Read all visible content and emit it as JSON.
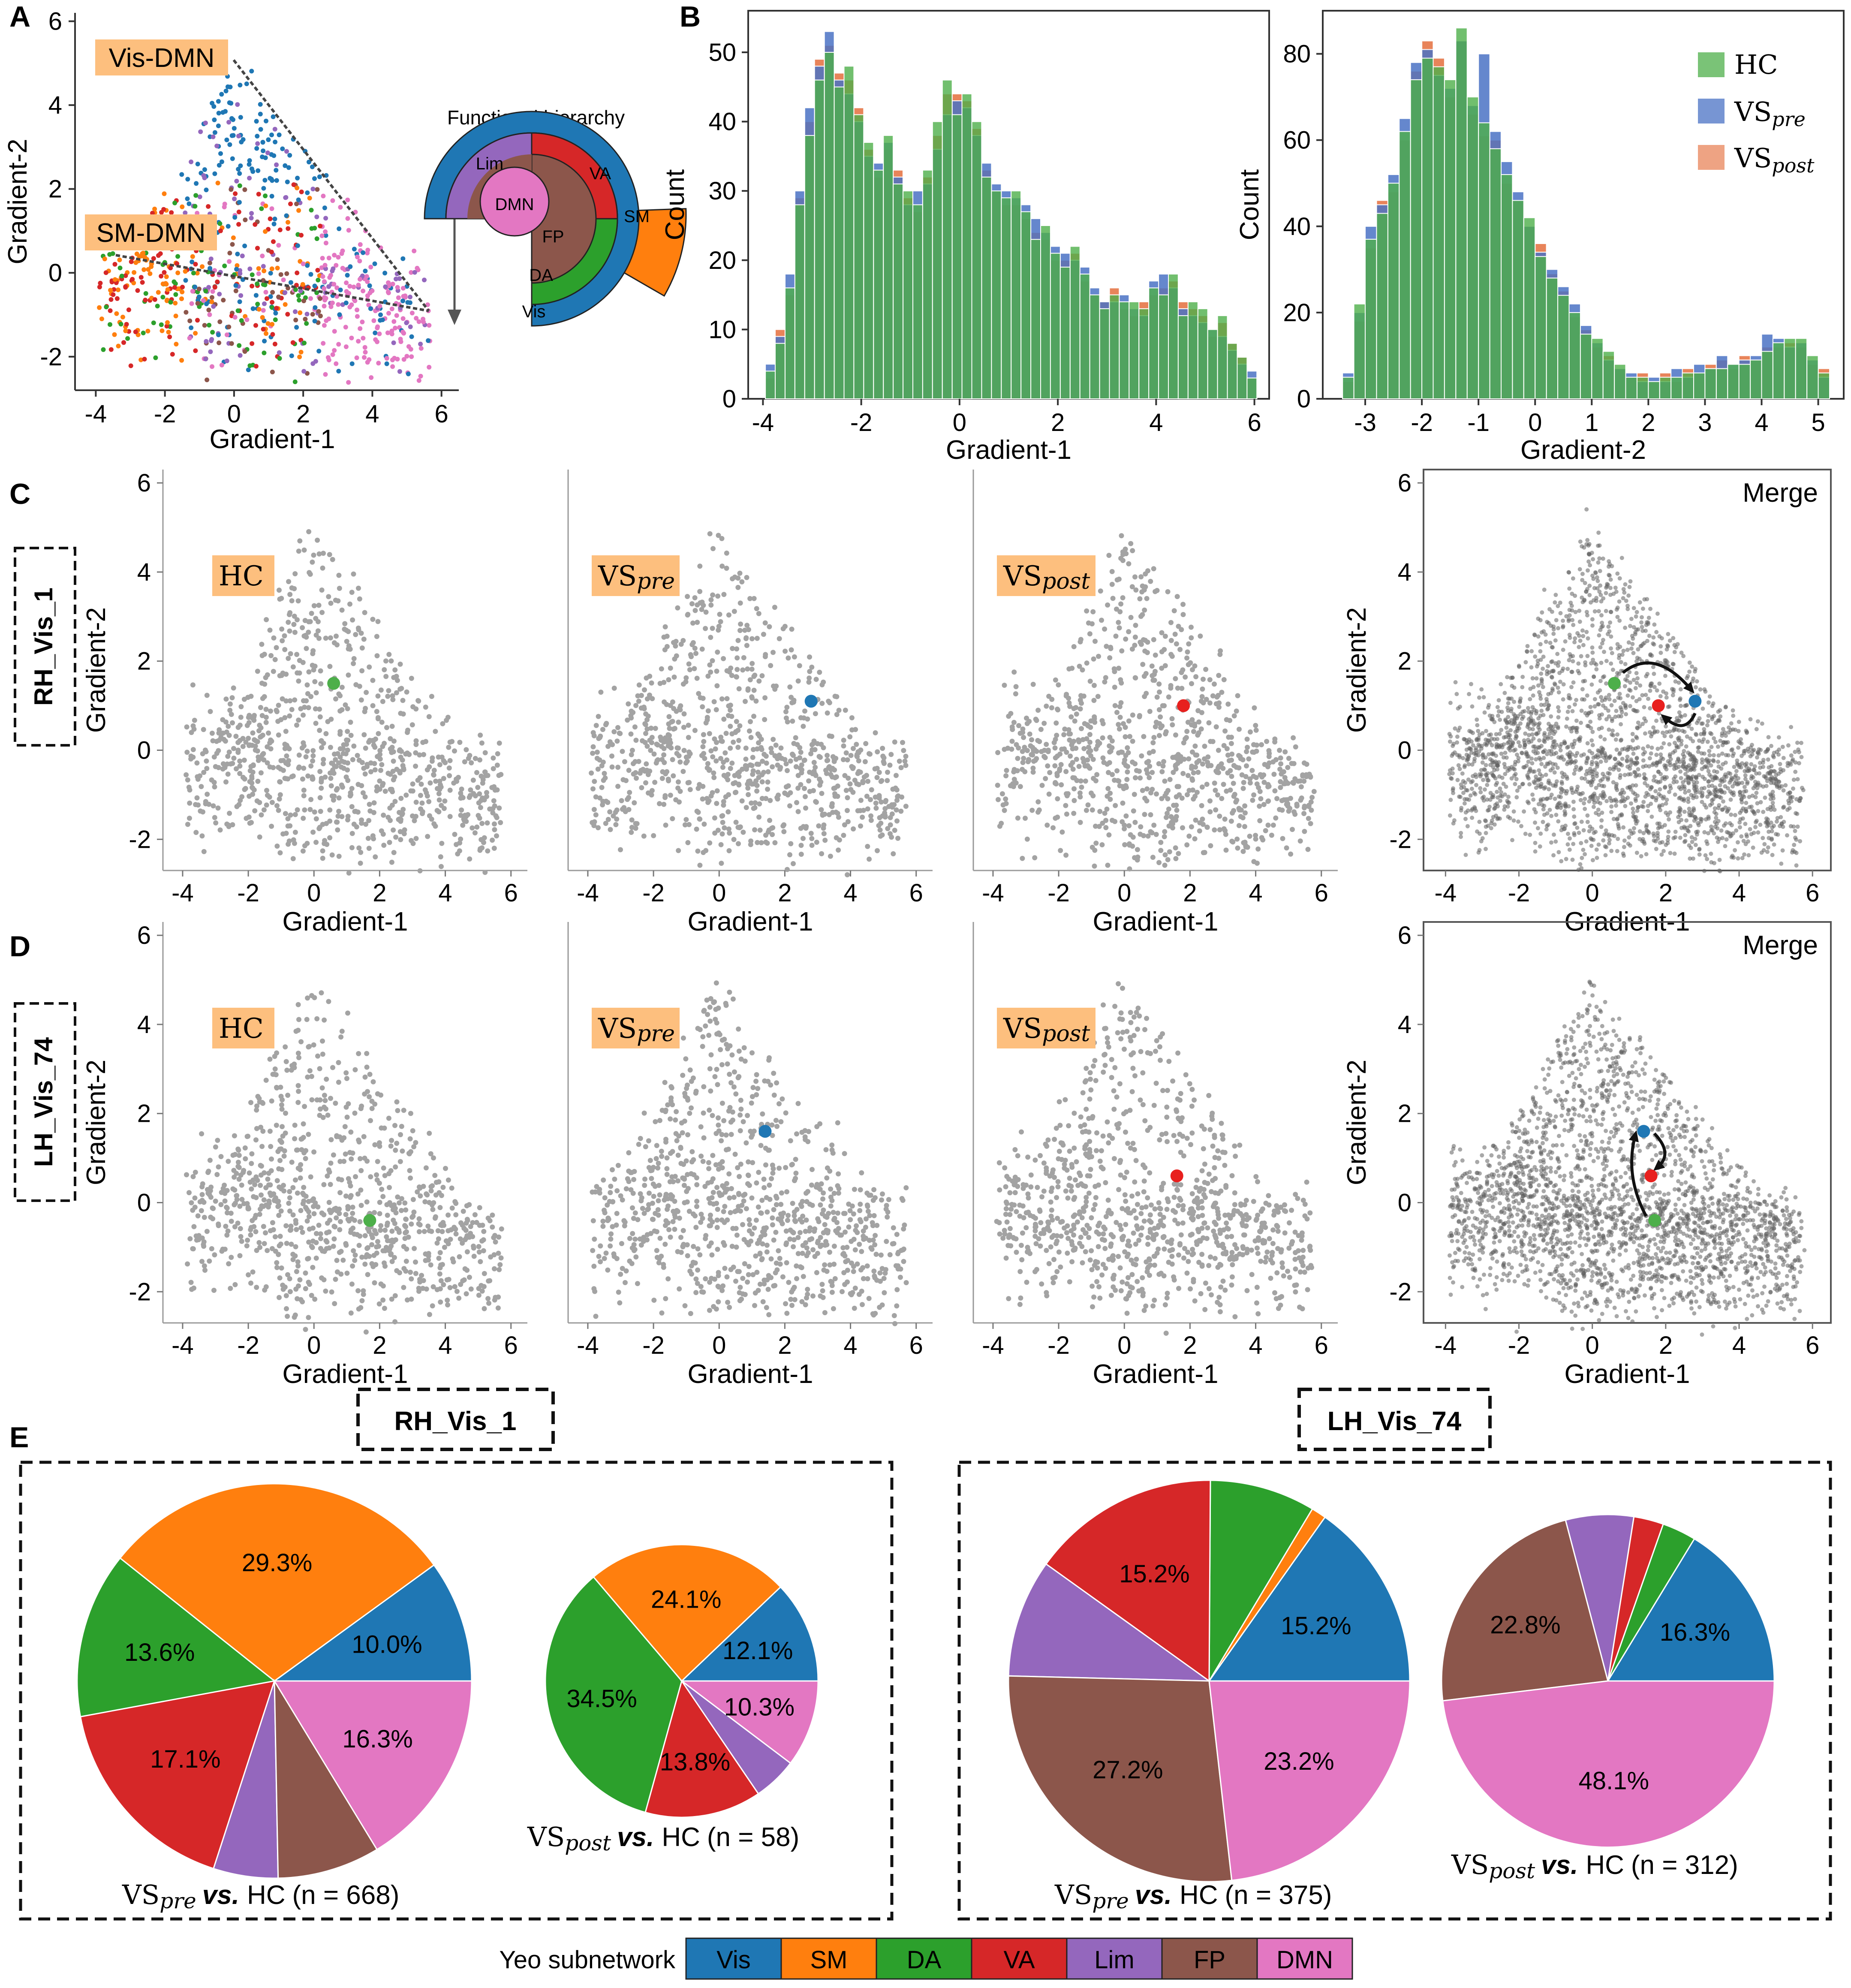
{
  "figure": {
    "panel_letters": [
      "A",
      "B",
      "C",
      "D",
      "E"
    ],
    "colors": {
      "Vis": "#1f77b4",
      "SM": "#ff7f0e",
      "DA": "#2ca02c",
      "VA": "#d62728",
      "Lim": "#9467bd",
      "FP": "#8c564b",
      "DMN": "#e377c2",
      "HC": "#4daf4a",
      "VSpre": "#4a72c4",
      "VSpost": "#e8845a",
      "gray": "#a3a3a3",
      "dark": "#555555",
      "label_bg": "#fdbf7e"
    }
  },
  "panel_a": {
    "x_label": "Gradient-1",
    "y_label": "Gradient-2",
    "x_ticks": [
      "-4",
      "-2",
      "0",
      "2",
      "4",
      "6"
    ],
    "y_ticks": [
      "-2",
      "0",
      "2",
      "4",
      "6"
    ],
    "anchor_labels": [
      "Vis-DMN",
      "SM-DMN"
    ],
    "hierarchy_title": "Functional hierarchy",
    "wheel_labels": [
      "Lim",
      "DMN",
      "FP",
      "VA",
      "SM",
      "DA",
      "Vis"
    ]
  },
  "panel_b": {
    "legend": [
      "HC",
      "VS",
      "pre",
      "VS",
      "post"
    ]
  },
  "panel_c": {
    "region": "RH_Vis_1",
    "plots": [
      {
        "group": "HC",
        "label_main": "HC",
        "label_sub": ""
      },
      {
        "group": "VSpre",
        "label_main": "VS",
        "label_sub": "pre"
      },
      {
        "group": "VSpost",
        "label_main": "VS",
        "label_sub": "post"
      },
      {
        "group": "Merge",
        "label_main": "Merge",
        "label_sub": ""
      }
    ]
  },
  "panel_d": {
    "region": "LH_Vis_74",
    "plots": [
      {
        "group": "HC",
        "label_main": "HC",
        "label_sub": ""
      },
      {
        "group": "VSpre",
        "label_main": "VS",
        "label_sub": "pre"
      },
      {
        "group": "VSpost",
        "label_main": "VS",
        "label_sub": "post"
      },
      {
        "group": "Merge",
        "label_main": "Merge",
        "label_sub": ""
      }
    ]
  },
  "panel_e": {
    "region_titles": [
      "RH_Vis_1",
      "LH_Vis_74"
    ],
    "vs_word": "vs.",
    "legend_title": "Yeo subnetwork",
    "legend_items": [
      "Vis",
      "SM",
      "DA",
      "VA",
      "Lim",
      "FP",
      "DMN"
    ]
  },
  "chart_data": [
    {
      "type": "scatter",
      "panel": "A",
      "title": "",
      "xlabel": "Gradient-1",
      "ylabel": "Gradient-2",
      "xlim": [
        -4.6,
        6.5
      ],
      "ylim": [
        -2.8,
        6.2
      ],
      "series_colors_by": "Yeo subnetwork",
      "trend_lines": [
        {
          "name": "Vis-DMN",
          "from": [
            -0.2,
            4.7
          ],
          "to": [
            5.6,
            -1.0
          ]
        },
        {
          "name": "SM-DMN",
          "from": [
            -3.6,
            0.4
          ],
          "to": [
            5.6,
            -1.0
          ]
        }
      ]
    },
    {
      "type": "bar",
      "panel": "B-left",
      "xlabel": "Gradient-1",
      "ylabel": "Count",
      "xlim": [
        -4.3,
        6.3
      ],
      "ylim": [
        0,
        56
      ],
      "x_ticks": [
        "-4",
        "-2",
        "0",
        "2",
        "4",
        "6"
      ],
      "y_ticks": [
        "0",
        "10",
        "20",
        "30",
        "40",
        "50"
      ],
      "bin_start": -3.95,
      "bin_width": 0.2,
      "series": [
        {
          "name": "HC",
          "values": [
            4,
            8,
            16,
            28,
            38,
            46,
            50,
            45,
            48,
            41,
            37,
            33,
            38,
            31,
            30,
            28,
            33,
            40,
            46,
            41,
            44,
            40,
            32,
            30,
            29,
            30,
            27,
            23,
            25,
            21,
            19,
            22,
            18,
            15,
            13,
            15,
            14,
            14,
            13,
            16,
            15,
            18,
            12,
            14,
            13,
            10,
            12,
            8,
            6,
            3
          ]
        },
        {
          "name": "VSpre",
          "values": [
            5,
            9,
            18,
            30,
            42,
            48,
            53,
            46,
            44,
            40,
            35,
            34,
            37,
            32,
            28,
            30,
            31,
            36,
            41,
            43,
            42,
            38,
            34,
            31,
            30,
            29,
            28,
            26,
            24,
            22,
            21,
            20,
            19,
            16,
            14,
            14,
            15,
            13,
            12,
            17,
            18,
            16,
            13,
            12,
            11,
            10,
            9,
            7,
            5,
            4
          ]
        },
        {
          "name": "VSpost",
          "values": [
            3,
            10,
            15,
            29,
            40,
            49,
            51,
            47,
            46,
            42,
            36,
            32,
            36,
            33,
            29,
            27,
            32,
            38,
            44,
            44,
            43,
            39,
            33,
            30,
            28,
            28,
            26,
            24,
            23,
            20,
            20,
            21,
            17,
            15,
            14,
            16,
            13,
            12,
            14,
            15,
            16,
            17,
            14,
            13,
            12,
            9,
            11,
            8,
            6,
            3
          ]
        }
      ]
    },
    {
      "type": "bar",
      "panel": "B-right",
      "xlabel": "Gradient-2",
      "ylabel": "Count",
      "xlim": [
        -3.75,
        5.45
      ],
      "ylim": [
        0,
        90
      ],
      "x_ticks": [
        "-3",
        "-2",
        "-1",
        "0",
        "1",
        "2",
        "3",
        "4",
        "5"
      ],
      "y_ticks": [
        "0",
        "20",
        "40",
        "60",
        "80"
      ],
      "bin_start": -3.4,
      "bin_width": 0.2,
      "series": [
        {
          "name": "HC",
          "values": [
            5,
            22,
            37,
            43,
            50,
            62,
            74,
            79,
            77,
            74,
            86,
            70,
            64,
            58,
            52,
            46,
            42,
            33,
            28,
            24,
            20,
            15,
            14,
            11,
            8,
            5,
            5,
            4,
            5,
            5,
            6,
            6,
            7,
            7,
            8,
            8,
            9,
            11,
            13,
            14,
            14,
            10,
            6
          ]
        },
        {
          "name": "VSpre",
          "values": [
            6,
            20,
            40,
            45,
            52,
            65,
            78,
            81,
            75,
            72,
            83,
            68,
            80,
            62,
            55,
            48,
            40,
            34,
            30,
            26,
            22,
            17,
            13,
            9,
            7,
            6,
            4,
            5,
            4,
            7,
            5,
            8,
            7,
            10,
            8,
            9,
            10,
            15,
            14,
            12,
            13,
            9,
            5
          ]
        },
        {
          "name": "VSpost",
          "values": [
            4,
            18,
            35,
            46,
            48,
            60,
            76,
            83,
            79,
            70,
            83,
            66,
            61,
            60,
            50,
            46,
            40,
            36,
            29,
            25,
            19,
            16,
            12,
            10,
            7,
            5,
            6,
            4,
            6,
            4,
            7,
            6,
            8,
            9,
            7,
            10,
            9,
            12,
            12,
            13,
            12,
            8,
            7
          ]
        }
      ]
    },
    {
      "type": "pie",
      "panel": "E-1",
      "group_main": "VS",
      "group_sub": "pre",
      "comparison": "HC",
      "n_label": "(n = 668)",
      "labels": [
        "Vis",
        "SM",
        "DA",
        "VA",
        "Lim",
        "FP",
        "DMN"
      ],
      "values": [
        10.0,
        29.3,
        13.6,
        17.1,
        5.3,
        8.4,
        16.3
      ],
      "value_labels": [
        "10.0%",
        "29.3%",
        "13.6%",
        "17.1%",
        "",
        "",
        "16.3%"
      ]
    },
    {
      "type": "pie",
      "panel": "E-2",
      "group_main": "VS",
      "group_sub": "post",
      "comparison": "HC",
      "n_label": "(n = 58)",
      "labels": [
        "Vis",
        "SM",
        "DA",
        "VA",
        "Lim",
        "FP",
        "DMN"
      ],
      "values": [
        12.1,
        24.1,
        34.5,
        13.8,
        5.2,
        0.0,
        10.3
      ],
      "value_labels": [
        "12.1%",
        "24.1%",
        "34.5%",
        "13.8%",
        "",
        "",
        "10.3%"
      ]
    },
    {
      "type": "pie",
      "panel": "E-3",
      "group_main": "VS",
      "group_sub": "pre",
      "comparison": "HC",
      "n_label": "(n = 375)",
      "labels": [
        "Vis",
        "SM",
        "DA",
        "VA",
        "Lim",
        "FP",
        "DMN"
      ],
      "values": [
        15.2,
        1.2,
        8.5,
        15.2,
        9.5,
        27.2,
        23.2
      ],
      "value_labels": [
        "15.2%",
        "",
        "",
        "15.2%",
        "",
        "27.2%",
        "23.2%"
      ]
    },
    {
      "type": "pie",
      "panel": "E-4",
      "group_main": "VS",
      "group_sub": "post",
      "comparison": "HC",
      "n_label": "(n = 312)",
      "labels": [
        "Vis",
        "SM",
        "DA",
        "VA",
        "Lim",
        "FP",
        "DMN"
      ],
      "values": [
        16.3,
        0.0,
        3.3,
        2.9,
        6.6,
        22.8,
        48.1
      ],
      "value_labels": [
        "16.3%",
        "",
        "",
        "",
        "",
        "22.8%",
        "48.1%"
      ]
    },
    {
      "type": "scatter",
      "panel": "C",
      "region": "RH_Vis_1",
      "xlabel": "Gradient-1",
      "ylabel": "Gradient-2",
      "xlim": [
        -4.6,
        6.5
      ],
      "ylim": [
        -2.7,
        6.3
      ],
      "highlight": {
        "HC": [
          0.6,
          1.5
        ],
        "VSpre": [
          2.8,
          1.1
        ],
        "VSpost": [
          1.8,
          1.0
        ]
      }
    },
    {
      "type": "scatter",
      "panel": "D",
      "region": "LH_Vis_74",
      "xlabel": "Gradient-1",
      "ylabel": "Gradient-2",
      "xlim": [
        -4.6,
        6.5
      ],
      "ylim": [
        -2.7,
        6.3
      ],
      "highlight": {
        "HC": [
          1.7,
          -0.4
        ],
        "VSpre": [
          1.4,
          1.6
        ],
        "VSpost": [
          1.6,
          0.6
        ]
      }
    }
  ]
}
